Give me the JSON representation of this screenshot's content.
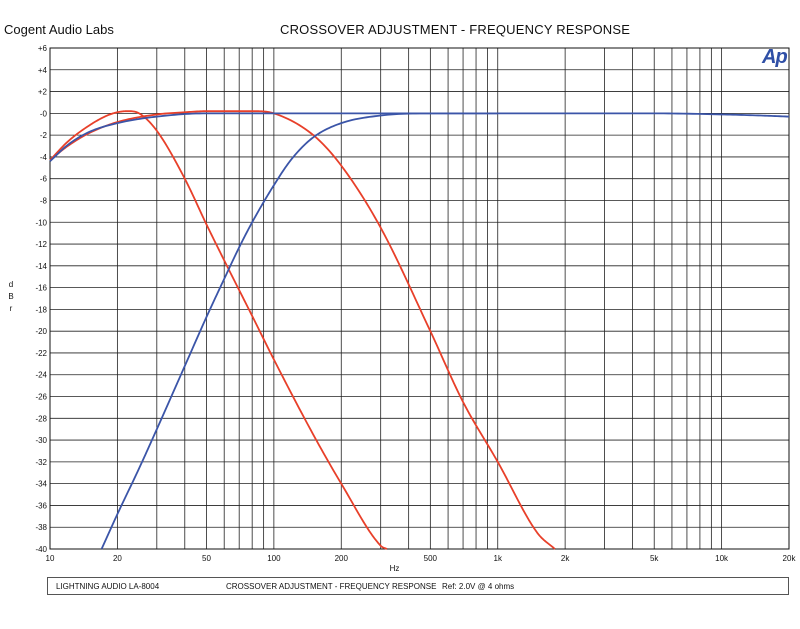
{
  "header": {
    "company": "Cogent Audio Labs",
    "title": "CROSSOVER ADJUSTMENT  -  FREQUENCY RESPONSE",
    "logo": "Ap"
  },
  "footer": {
    "device": "LIGHTNING AUDIO LA-8004",
    "description": "CROSSOVER ADJUSTMENT  -  FREQUENCY RESPONSE",
    "reference": "Ref: 2.0V @ 4 ohms"
  },
  "colors": {
    "red": "#e8402a",
    "blue": "#3b55a8",
    "grid": "#222222"
  },
  "chart_data": {
    "type": "line",
    "title": "CROSSOVER ADJUSTMENT  -  FREQUENCY RESPONSE",
    "xlabel": "Hz",
    "ylabel": "dBr",
    "x_scale": "log",
    "xlim": [
      10,
      20000
    ],
    "ylim": [
      -40,
      6
    ],
    "grid": true,
    "x_ticks": [
      10,
      20,
      50,
      100,
      200,
      500,
      1000,
      2000,
      5000,
      10000,
      20000
    ],
    "x_tick_labels": [
      "10",
      "20",
      "50",
      "100",
      "200",
      "500",
      "1k",
      "2k",
      "5k",
      "10k",
      "20k"
    ],
    "y_ticks": [
      6,
      4,
      2,
      0,
      -2,
      -4,
      -6,
      -8,
      -10,
      -12,
      -14,
      -16,
      -18,
      -20,
      -22,
      -24,
      -26,
      -28,
      -30,
      -32,
      -34,
      -36,
      -38,
      -40
    ],
    "y_tick_labels": [
      "+6",
      "+4",
      "+2",
      "-0",
      "-2",
      "-4",
      "-6",
      "-8",
      "-10",
      "-12",
      "-14",
      "-16",
      "-18",
      "-20",
      "-22",
      "-24",
      "-26",
      "-28",
      "-30",
      "-32",
      "-34",
      "-36",
      "-38",
      "-40"
    ],
    "series": [
      {
        "color": "#e8402a",
        "points": [
          [
            10,
            -4.3
          ],
          [
            12,
            -2.6
          ],
          [
            15,
            -1.1
          ],
          [
            18,
            -0.2
          ],
          [
            20,
            0.1
          ],
          [
            22,
            0.2
          ],
          [
            25,
            0.0
          ],
          [
            30,
            -1.6
          ],
          [
            40,
            -6.0
          ],
          [
            50,
            -10.2
          ],
          [
            60,
            -13.5
          ],
          [
            80,
            -18.6
          ],
          [
            100,
            -22.6
          ],
          [
            150,
            -29.5
          ],
          [
            200,
            -34.0
          ],
          [
            300,
            -39.7
          ],
          [
            320,
            -40.0
          ]
        ]
      },
      {
        "color": "#e8402a",
        "points": [
          [
            10,
            -4.3
          ],
          [
            12,
            -3.0
          ],
          [
            15,
            -1.8
          ],
          [
            20,
            -0.8
          ],
          [
            30,
            -0.1
          ],
          [
            40,
            0.1
          ],
          [
            50,
            0.2
          ],
          [
            80,
            0.2
          ],
          [
            100,
            0.0
          ],
          [
            150,
            -2.0
          ],
          [
            200,
            -4.8
          ],
          [
            300,
            -10.5
          ],
          [
            500,
            -20.0
          ],
          [
            700,
            -26.5
          ],
          [
            1000,
            -32.0
          ],
          [
            1500,
            -38.5
          ],
          [
            1800,
            -40.0
          ]
        ]
      },
      {
        "color": "#3b55a8",
        "points": [
          [
            10,
            -4.4
          ],
          [
            12,
            -2.9
          ],
          [
            15,
            -1.7
          ],
          [
            20,
            -0.9
          ],
          [
            30,
            -0.3
          ],
          [
            50,
            0.0
          ],
          [
            100,
            0.0
          ],
          [
            500,
            0.0
          ],
          [
            2000,
            0.0
          ],
          [
            5000,
            0.0
          ],
          [
            10000,
            -0.1
          ],
          [
            15000,
            -0.2
          ],
          [
            20000,
            -0.3
          ]
        ]
      },
      {
        "color": "#3b55a8",
        "points": [
          [
            17,
            -40.0
          ],
          [
            20,
            -36.8
          ],
          [
            25,
            -32.6
          ],
          [
            30,
            -29.0
          ],
          [
            40,
            -23.2
          ],
          [
            50,
            -18.7
          ],
          [
            60,
            -15.2
          ],
          [
            70,
            -12.3
          ],
          [
            80,
            -10.0
          ],
          [
            100,
            -6.6
          ],
          [
            120,
            -4.2
          ],
          [
            150,
            -2.2
          ],
          [
            200,
            -0.9
          ],
          [
            300,
            -0.2
          ],
          [
            500,
            0.0
          ],
          [
            1000,
            0.0
          ]
        ]
      }
    ]
  }
}
